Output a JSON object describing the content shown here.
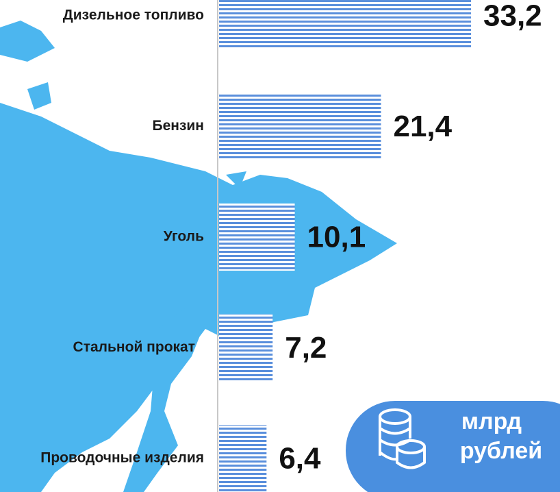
{
  "chart_data": {
    "type": "bar",
    "orientation": "horizontal",
    "categories": [
      "Дизельное топливо",
      "Бензин",
      "Уголь",
      "Стальной прокат",
      "Проводочные изделия"
    ],
    "values": [
      33.2,
      21.4,
      10.1,
      7.2,
      6.4
    ],
    "value_labels": [
      "33,2",
      "21,4",
      "10,1",
      "7,2",
      "6,4"
    ],
    "color": "#5a8fdc",
    "unit": [
      "млрд",
      "рублей"
    ]
  }
}
